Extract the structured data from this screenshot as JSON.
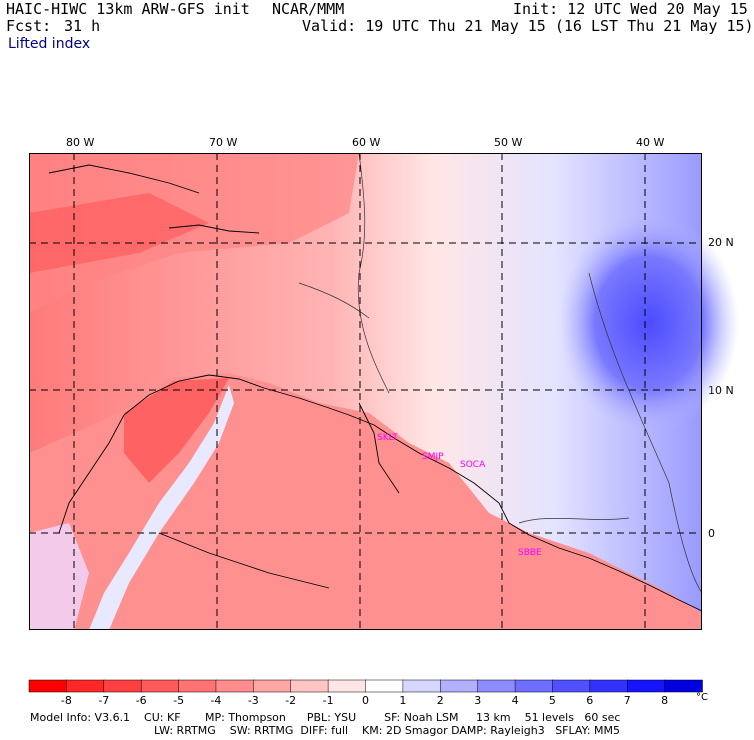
{
  "header": {
    "model_title": "HAIC-HIWC 13km ARW-GFS init",
    "org": "NCAR/MMM",
    "init": "Init: 12 UTC Wed 20 May 15",
    "fcst_label": "Fcst:",
    "fcst_hours": "31 h",
    "valid": "Valid: 19 UTC Thu 21 May 15 (16 LST Thu 21 May 15)",
    "field": "Lifted index"
  },
  "axes": {
    "lon_labels": [
      "80 W",
      "70 W",
      "60 W",
      "50 W",
      "40 W"
    ],
    "lat_labels": [
      "20 N",
      "10 N",
      "0"
    ]
  },
  "stations": [
    "SKLT",
    "SMJP",
    "SOCA",
    "SBBE"
  ],
  "colorbar": {
    "ticks": [
      "-8",
      "-7",
      "-6",
      "-5",
      "-4",
      "-3",
      "-2",
      "-1",
      "0",
      "1",
      "2",
      "3",
      "4",
      "5",
      "6",
      "7",
      "8"
    ],
    "unit": "°C",
    "colors": [
      "#ff0000",
      "#ff2626",
      "#ff4040",
      "#ff5a5a",
      "#ff7373",
      "#ff8c8c",
      "#ffa6a6",
      "#ffc4c4",
      "#ffe6e6",
      "#ffffff",
      "#d6d6ff",
      "#b0b0ff",
      "#8c8cff",
      "#6e6eff",
      "#5050ff",
      "#3232ff",
      "#1414ff",
      "#0000e0"
    ]
  },
  "model_info": {
    "line1": "Model Info: V3.6.1    CU: KF       MP: Thompson      PBL: YSU        SF: Noah LSM     13 km    51 levels   60 sec",
    "line2": "LW: RRTMG    SW: RRTMG  DIFF: full    KM: 2D Smagor DAMP: Rayleigh3   SFLAY: MM5"
  }
}
